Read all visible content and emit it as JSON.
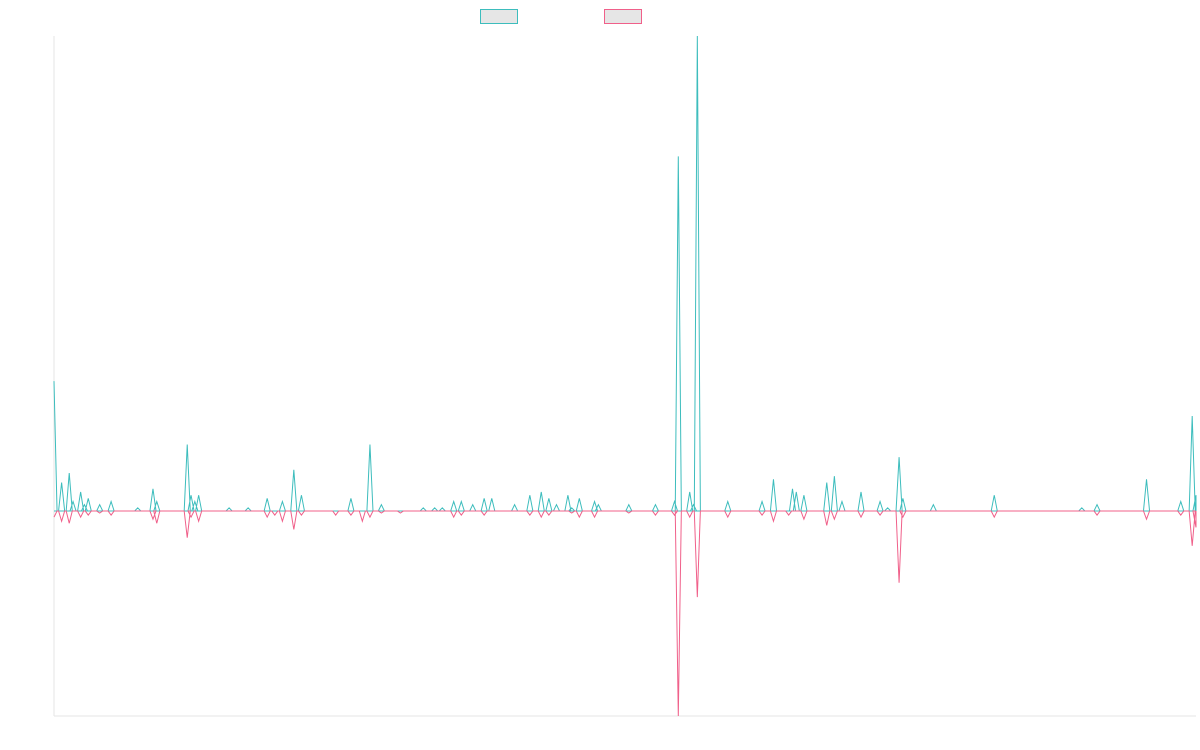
{
  "chart_data": {
    "type": "line",
    "title": "",
    "xlabel": "",
    "ylabel": "",
    "grid": false,
    "legend_position": "top-center",
    "ylim": [
      -1,
      1
    ],
    "x_count": 200,
    "series": [
      {
        "color": "#3dbdbd",
        "points": [
          [
            0,
            0.41
          ],
          [
            2,
            0.09
          ],
          [
            4,
            0.12
          ],
          [
            5,
            0.03
          ],
          [
            7,
            0.06
          ],
          [
            8,
            0.02
          ],
          [
            9,
            0.04
          ],
          [
            12,
            0.02
          ],
          [
            15,
            0.03
          ],
          [
            22,
            0.01
          ],
          [
            26,
            0.07
          ],
          [
            27,
            0.03
          ],
          [
            35,
            0.21
          ],
          [
            36,
            0.05
          ],
          [
            37,
            0.03
          ],
          [
            38,
            0.05
          ],
          [
            46,
            0.01
          ],
          [
            51,
            0.01
          ],
          [
            56,
            0.04
          ],
          [
            60,
            0.03
          ],
          [
            63,
            0.13
          ],
          [
            65,
            0.05
          ],
          [
            78,
            0.04
          ],
          [
            83,
            0.21
          ],
          [
            86,
            0.02
          ],
          [
            97,
            0.01
          ],
          [
            100,
            0.01
          ],
          [
            102,
            0.01
          ],
          [
            105,
            0.03
          ],
          [
            107,
            0.03
          ],
          [
            110,
            0.02
          ],
          [
            113,
            0.04
          ],
          [
            115,
            0.04
          ],
          [
            121,
            0.02
          ],
          [
            125,
            0.05
          ],
          [
            128,
            0.06
          ],
          [
            130,
            0.04
          ],
          [
            132,
            0.02
          ],
          [
            135,
            0.05
          ],
          [
            136,
            0.01
          ],
          [
            138,
            0.04
          ],
          [
            142,
            0.03
          ],
          [
            143,
            0.02
          ],
          [
            151,
            0.02
          ],
          [
            158,
            0.02
          ],
          [
            163,
            0.03
          ],
          [
            164,
            1.12
          ],
          [
            167,
            0.06
          ],
          [
            168,
            0.02
          ],
          [
            169,
            1.5
          ],
          [
            177,
            0.03
          ],
          [
            186,
            0.03
          ],
          [
            189,
            0.1
          ],
          [
            194,
            0.07
          ],
          [
            195,
            0.06
          ],
          [
            197,
            0.05
          ],
          [
            203,
            0.09
          ],
          [
            205,
            0.11
          ],
          [
            207,
            0.03
          ],
          [
            212,
            0.06
          ],
          [
            217,
            0.03
          ],
          [
            219,
            0.01
          ],
          [
            222,
            0.17
          ],
          [
            223,
            0.04
          ],
          [
            231,
            0.02
          ],
          [
            247,
            0.05
          ],
          [
            270,
            0.01
          ],
          [
            274,
            0.02
          ],
          [
            287,
            0.1
          ],
          [
            296,
            0.03
          ],
          [
            299,
            0.3
          ],
          [
            300,
            0.05
          ]
        ]
      },
      {
        "color": "#f0608a",
        "points": [
          [
            0,
            -0.03
          ],
          [
            2,
            -0.05
          ],
          [
            4,
            -0.06
          ],
          [
            7,
            -0.03
          ],
          [
            9,
            -0.02
          ],
          [
            12,
            -0.01
          ],
          [
            15,
            -0.02
          ],
          [
            26,
            -0.04
          ],
          [
            27,
            -0.06
          ],
          [
            35,
            -0.13
          ],
          [
            36,
            -0.03
          ],
          [
            38,
            -0.05
          ],
          [
            56,
            -0.03
          ],
          [
            58,
            -0.02
          ],
          [
            60,
            -0.05
          ],
          [
            63,
            -0.09
          ],
          [
            65,
            -0.02
          ],
          [
            74,
            -0.02
          ],
          [
            78,
            -0.02
          ],
          [
            81,
            -0.05
          ],
          [
            83,
            -0.03
          ],
          [
            86,
            -0.01
          ],
          [
            91,
            -0.01
          ],
          [
            105,
            -0.03
          ],
          [
            107,
            -0.02
          ],
          [
            113,
            -0.02
          ],
          [
            125,
            -0.02
          ],
          [
            128,
            -0.03
          ],
          [
            130,
            -0.02
          ],
          [
            136,
            -0.01
          ],
          [
            138,
            -0.03
          ],
          [
            142,
            -0.03
          ],
          [
            151,
            -0.01
          ],
          [
            158,
            -0.02
          ],
          [
            163,
            -0.02
          ],
          [
            164,
            -1.0
          ],
          [
            167,
            -0.03
          ],
          [
            169,
            -0.42
          ],
          [
            177,
            -0.03
          ],
          [
            186,
            -0.02
          ],
          [
            189,
            -0.05
          ],
          [
            193,
            -0.02
          ],
          [
            197,
            -0.04
          ],
          [
            203,
            -0.07
          ],
          [
            205,
            -0.04
          ],
          [
            212,
            -0.03
          ],
          [
            217,
            -0.02
          ],
          [
            222,
            -0.35
          ],
          [
            223,
            -0.03
          ],
          [
            247,
            -0.03
          ],
          [
            274,
            -0.02
          ],
          [
            287,
            -0.04
          ],
          [
            296,
            -0.02
          ],
          [
            299,
            -0.17
          ],
          [
            300,
            -0.08
          ]
        ]
      }
    ]
  }
}
